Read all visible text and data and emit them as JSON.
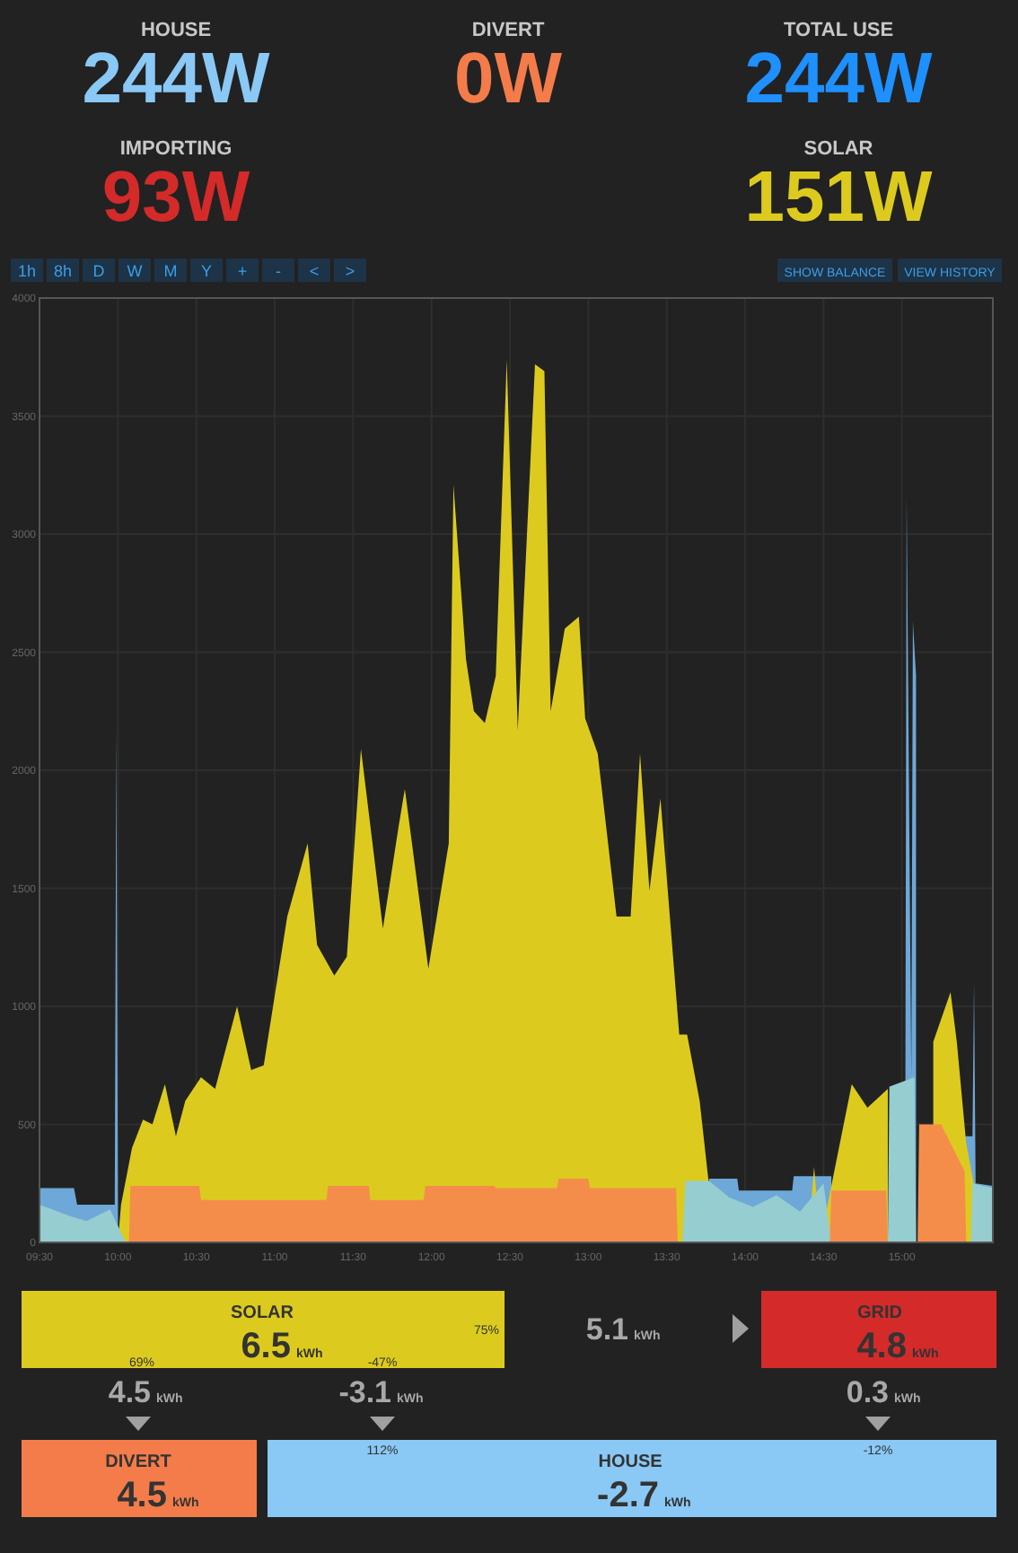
{
  "chart_data": [
    {
      "type": "other",
      "annotations": [
        "HOUSE",
        "244W",
        "DIVERT",
        "0W",
        "TOTAL USE",
        "244W",
        "IMPORTING",
        "93W",
        "SOLAR",
        "151W",
        "1h",
        "8h",
        "D",
        "W",
        "M",
        "Y",
        "+",
        "-",
        "<",
        ">",
        "SHOW BALANCE",
        "VIEW HISTORY"
      ]
    },
    {
      "type": "area",
      "grid": true,
      "xlim": [
        9.5,
        15.58
      ],
      "ylim": [
        0,
        4000
      ],
      "xticks": [
        {
          "value": 9.5,
          "label": "09:30"
        },
        {
          "value": 10,
          "label": "10:00"
        },
        {
          "value": 10.5,
          "label": "10:30"
        },
        {
          "value": 11,
          "label": "11:00"
        },
        {
          "value": 11.5,
          "label": "11:30"
        },
        {
          "value": 12,
          "label": "12:00"
        },
        {
          "value": 12.5,
          "label": "12:30"
        },
        {
          "value": 13,
          "label": "13:00"
        },
        {
          "value": 13.5,
          "label": "13:30"
        },
        {
          "value": 14,
          "label": "14:00"
        },
        {
          "value": 14.5,
          "label": "14:30"
        },
        {
          "value": 15,
          "label": "15:00"
        }
      ],
      "yticks": [
        0,
        500,
        1000,
        1500,
        2000,
        2500,
        3000,
        3500,
        4000
      ],
      "series": [
        {
          "color": "#6ea8d8",
          "x": [
            9.5,
            9.72,
            9.74,
            9.98,
            9.99,
            10.0,
            10.01,
            13.76,
            13.77,
            13.95,
            13.96,
            14.3,
            14.31,
            14.55,
            14.8,
            15.02,
            15.03,
            15.06,
            15.07,
            15.09,
            15.1,
            15.12,
            15.4,
            15.45,
            15.46,
            15.47,
            15.58
          ],
          "values": [
            230,
            230,
            160,
            160,
            2170,
            160,
            null,
            null,
            270,
            270,
            220,
            220,
            280,
            280,
            null,
            0,
            3160,
            700,
            2630,
            2400,
            null,
            null,
            450,
            450,
            1100,
            250,
            240
          ]
        },
        {
          "color": "#dccb1e",
          "x": [
            10.0,
            10.02,
            10.09,
            10.16,
            10.22,
            10.3,
            10.37,
            10.43,
            10.53,
            10.62,
            10.76,
            10.85,
            10.93,
            11.08,
            11.21,
            11.27,
            11.38,
            11.46,
            11.55,
            11.69,
            11.79,
            11.83,
            11.98,
            12.11,
            12.14,
            12.22,
            12.27,
            12.34,
            12.41,
            12.48,
            12.55,
            12.66,
            12.72,
            12.76,
            12.85,
            12.94,
            12.98,
            13.06,
            13.18,
            13.27,
            13.33,
            13.39,
            13.46,
            13.58,
            13.63,
            13.71,
            13.77,
            13.8,
            14.4,
            14.44,
            14.48,
            14.55,
            14.68,
            14.78,
            14.91,
            15.03,
            15.2,
            15.31,
            15.35,
            15.41,
            15.46,
            15.48
          ],
          "values": [
            0,
            160,
            400,
            520,
            500,
            670,
            450,
            600,
            700,
            650,
            1000,
            730,
            750,
            1380,
            1690,
            1260,
            1130,
            1210,
            2090,
            1330,
            1760,
            1920,
            1160,
            1690,
            3210,
            2470,
            2250,
            2200,
            2400,
            3740,
            2170,
            3720,
            3690,
            2250,
            2600,
            2650,
            2220,
            2070,
            1380,
            1380,
            2070,
            1490,
            1880,
            880,
            880,
            600,
            240,
            0,
            0,
            320,
            0,
            240,
            670,
            570,
            650,
            null,
            850,
            1060,
            850,
            420,
            240,
            0
          ]
        },
        {
          "color": "#96cdd0",
          "x": [
            9.5,
            9.7,
            9.8,
            9.95,
            10.05,
            12.0,
            13.6,
            13.62,
            13.77,
            13.9,
            14.05,
            14.2,
            14.35,
            14.5,
            14.55,
            14.8,
            14.91,
            14.92,
            15.08,
            15.09,
            15.3,
            15.44,
            15.45,
            15.58
          ],
          "values": [
            160,
            110,
            90,
            140,
            0,
            null,
            0,
            260,
            260,
            190,
            150,
            200,
            130,
            250,
            0,
            null,
            0,
            660,
            700,
            0,
            null,
            0,
            250,
            230
          ]
        },
        {
          "color": "#f58d4a",
          "x": [
            10.07,
            10.08,
            10.52,
            10.53,
            11.33,
            11.34,
            11.6,
            11.61,
            11.95,
            11.96,
            12.4,
            12.41,
            12.8,
            12.81,
            13.0,
            13.01,
            13.56,
            13.57,
            14.0,
            14.54,
            14.55,
            14.9,
            14.91,
            15.0,
            15.1,
            15.11,
            15.25,
            15.4,
            15.41
          ],
          "values": [
            0,
            240,
            240,
            180,
            180,
            240,
            240,
            180,
            180,
            240,
            240,
            230,
            230,
            270,
            270,
            230,
            230,
            0,
            null,
            0,
            220,
            220,
            0,
            null,
            0,
            500,
            500,
            300,
            0
          ]
        }
      ]
    },
    {
      "type": "other",
      "annotations": [
        "SOLAR",
        "6.5",
        "kWh",
        "75%",
        "69%",
        "-47%",
        "5.1",
        "kWh",
        "GRID",
        "4.8",
        "kWh",
        "4.5",
        "kWh",
        "-3.1",
        "kWh",
        "0.3",
        "kWh",
        "DIVERT",
        "4.5",
        "kWh",
        "112%",
        "HOUSE",
        "-2.7",
        "kWh",
        "-12%"
      ]
    }
  ]
}
